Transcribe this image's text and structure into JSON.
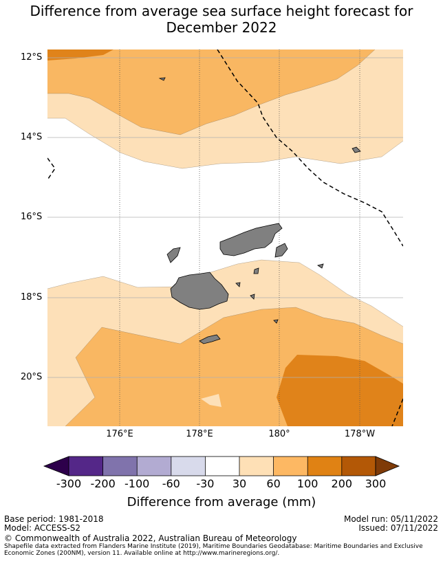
{
  "title_line1": "Difference from average sea surface height forecast for",
  "title_line2": "December 2022",
  "map": {
    "lat_labels": [
      "12°S",
      "14°S",
      "16°S",
      "18°S",
      "20°S"
    ],
    "lon_labels": [
      "176°E",
      "178°E",
      "180°",
      "178°W"
    ],
    "colors": {
      "c30_60": "#fde0b8",
      "c60_100": "#f9b762",
      "c100_200": "#e0831a",
      "land": "#808080",
      "grid": "#b0b0b0"
    }
  },
  "colorbar": {
    "ticks": [
      "-300",
      "-200",
      "-100",
      "-60",
      "-30",
      "30",
      "60",
      "100",
      "200",
      "300"
    ],
    "colors": [
      "#2d004b",
      "#542788",
      "#8073ac",
      "#b2abd2",
      "#d8daeb",
      "#ffffff",
      "#fee0b6",
      "#fdb863",
      "#e08214",
      "#b35806",
      "#7f3b08"
    ],
    "label": "Difference from average (mm)"
  },
  "footer": {
    "base_period": "Base period: 1981-2018",
    "model": "Model: ACCESS-S2",
    "model_run": "Model run: 05/11/2022",
    "issued": "Issued: 07/11/2022",
    "copyright": "© Commonwealth of Australia 2022, Australian Bureau of Meteorology",
    "shapefile": "Shapefile data extracted from Flanders Marine Institute (2019), Maritime Boundaries Geodatabase: Maritime Boundaries and Exclusive Economic Zones (200NM), version 11. Available online at http://www.marineregions.org/."
  }
}
